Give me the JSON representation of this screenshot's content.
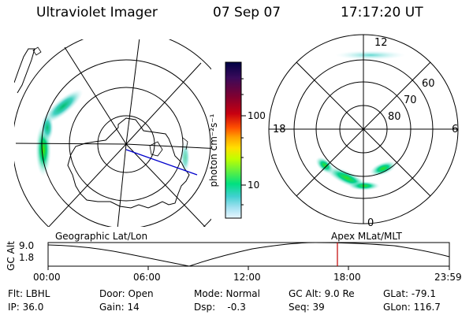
{
  "header": {
    "title": "Ultraviolet Imager",
    "date": "07 Sep 07",
    "time": "17:17:20 UT"
  },
  "colorbar": {
    "unit_label": "photon cm⁻²s⁻¹",
    "ticks": [
      "100",
      "10"
    ],
    "colors": [
      "#000044",
      "#3a0a5a",
      "#800030",
      "#c80010",
      "#ff5000",
      "#ffa000",
      "#ffe000",
      "#c0ff00",
      "#60f040",
      "#00e080",
      "#40d0d0",
      "#a0e0f0",
      "#e8f6ff"
    ]
  },
  "polar_plot": {
    "mlt_labels": {
      "top": "12",
      "left": "18",
      "right": "6",
      "bottom": "0"
    },
    "lat_labels": [
      "60",
      "70",
      "80"
    ]
  },
  "timeline": {
    "left_label": "Geographic Lat/Lon",
    "right_label": "Apex MLat/MLT",
    "y_axis_title": "GC Alt",
    "y_ticks": [
      "9.0",
      "1.8"
    ],
    "x_ticks": [
      "00:00",
      "06:00",
      "12:00",
      "18:00",
      "23:59"
    ],
    "current_time_marker_color": "#c00000"
  },
  "info": {
    "row1": {
      "filter": "Flt: LBHL",
      "door": "Door: Open",
      "mode": "Mode: Normal",
      "gc_alt": "GC Alt: 9.0 Re",
      "glat": "GLat: -79.1"
    },
    "row2": {
      "ip": "IP: 36.0",
      "gain": "Gain: 14",
      "dsp": "Dsp:    -0.3",
      "seq": "Seq: 39",
      "glon": "GLon: 116.7"
    }
  }
}
